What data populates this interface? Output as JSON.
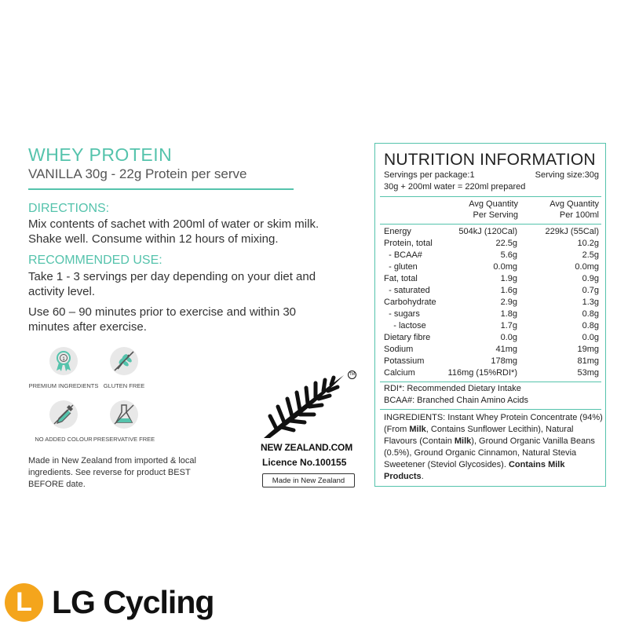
{
  "product": {
    "title": "WHEY PROTEIN",
    "subtitle": "VANILLA 30g - 22g Protein per serve"
  },
  "directions": {
    "heading": "DIRECTIONS:",
    "text": "Mix contents of sachet with 200ml of water or skim milk. Shake well. Consume within 12 hours of mixing."
  },
  "recommended": {
    "heading": "RECOMMENDED USE:",
    "text1": "Take 1 - 3 servings per day depending on your diet and activity level.",
    "text2": "Use 60 – 90 minutes prior to exercise and within 30 minutes after exercise."
  },
  "badges": [
    {
      "label": "PREMIUM INGREDIENTS",
      "icon": "premium-medal-icon"
    },
    {
      "label": "GLUTEN FREE",
      "icon": "wheat-icon"
    },
    {
      "label": "NO ADDED COLOUR",
      "icon": "dropper-icon"
    },
    {
      "label": "PRESERVATIVE FREE",
      "icon": "flask-icon"
    }
  ],
  "made_in": "Made in New Zealand from imported & local ingredients. See reverse for product BEST BEFORE date.",
  "nz": {
    "tm": "TM",
    "site": "NEW ZEALAND.COM",
    "licence": "Licence No.100155",
    "made_box": "Made in New Zealand"
  },
  "nutrition": {
    "title": "NUTRITION INFORMATION",
    "servings": "Servings per package:1",
    "serving_size": "Serving size:30g",
    "prepared": "30g + 200ml water = 220ml prepared",
    "col1_a": "Avg Quantity",
    "col1_b": "Per Serving",
    "col2_a": "Avg Quantity",
    "col2_b": "Per 100ml",
    "rows": [
      {
        "name": "Energy",
        "serving": "504kJ (120Cal)",
        "per100": "229kJ (55Cal)"
      },
      {
        "name": "Protein, total",
        "serving": "22.5g",
        "per100": "10.2g"
      },
      {
        "name": "  - BCAA#",
        "serving": "5.6g",
        "per100": "2.5g"
      },
      {
        "name": "  - gluten",
        "serving": "0.0mg",
        "per100": "0.0mg"
      },
      {
        "name": "Fat, total",
        "serving": "1.9g",
        "per100": "0.9g"
      },
      {
        "name": "  - saturated",
        "serving": "1.6g",
        "per100": "0.7g"
      },
      {
        "name": "Carbohydrate",
        "serving": "2.9g",
        "per100": "1.3g"
      },
      {
        "name": "  - sugars",
        "serving": "1.8g",
        "per100": "0.8g"
      },
      {
        "name": "    - lactose",
        "serving": "1.7g",
        "per100": "0.8g"
      },
      {
        "name": "Dietary fibre",
        "serving": "0.0g",
        "per100": "0.0g"
      },
      {
        "name": "Sodium",
        "serving": "41mg",
        "per100": "19mg"
      },
      {
        "name": "Potassium",
        "serving": "178mg",
        "per100": "81mg"
      },
      {
        "name": "Calcium",
        "serving": "116mg (15%RDI*)",
        "per100": "53mg"
      }
    ],
    "rdi_note": "RDI*: Recommended Dietary Intake",
    "bcaa_note": "BCAA#: Branched Chain Amino Acids",
    "ingredients_a": "INGREDIENTS: Instant Whey Protein Concentrate (94%) (From ",
    "ingredients_milk1": "Milk",
    "ingredients_b": ", Contains Sunflower Lecithin), Natural Flavours (Contain ",
    "ingredients_milk2": "Milk",
    "ingredients_c": "), Ground Organic Vanilla Beans (0.5%), Ground Organic Cinnamon, Natural Stevia Sweetener (Steviol Glycosides). ",
    "ingredients_contains": "Contains Milk Products",
    "ingredients_end": "."
  },
  "brand": {
    "logo_letter": "L",
    "name": "LG Cycling",
    "accent": "#55c3ac",
    "logo_color": "#f4a51c"
  }
}
